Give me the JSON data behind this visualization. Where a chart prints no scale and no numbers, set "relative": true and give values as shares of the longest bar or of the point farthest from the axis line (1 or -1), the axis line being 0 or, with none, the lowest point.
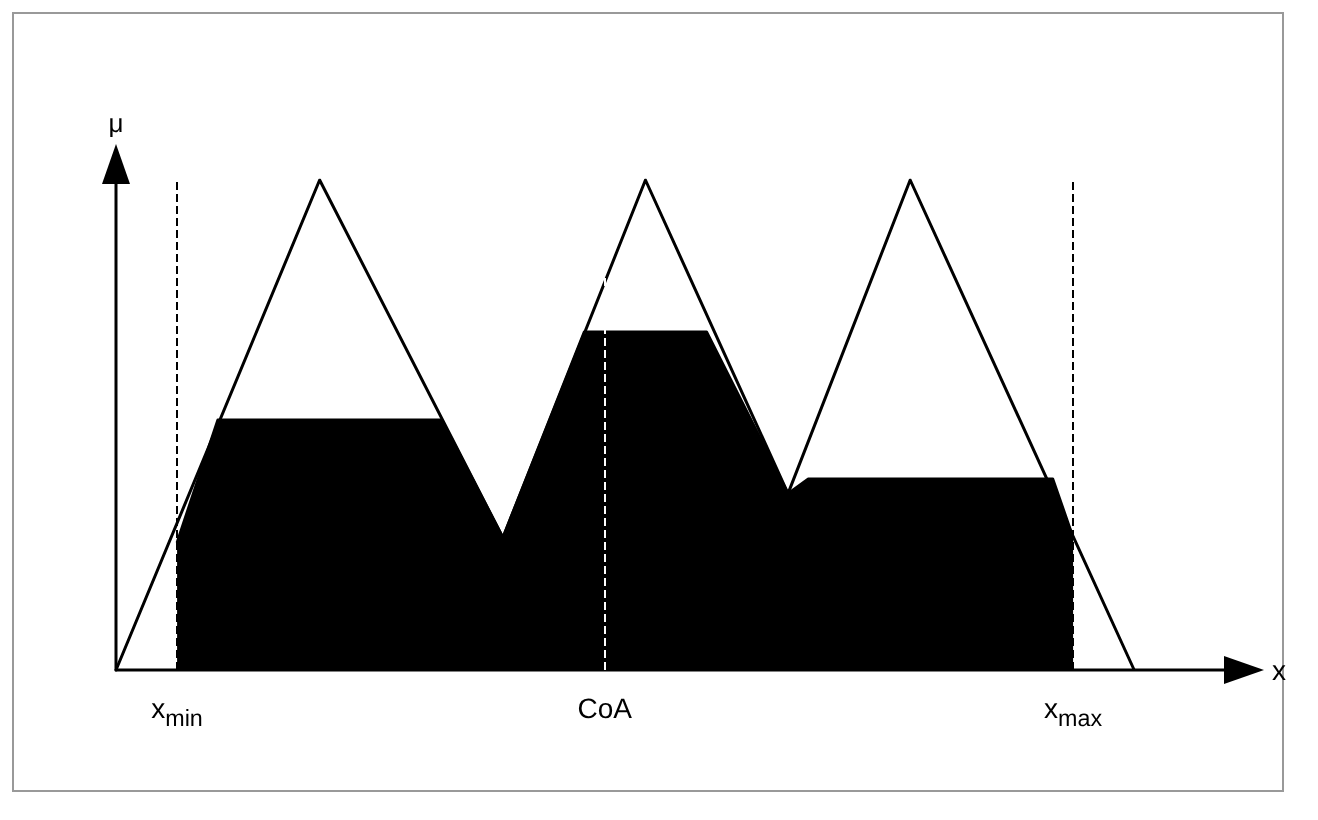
{
  "chart_data": {
    "type": "area",
    "relative": true,
    "xlabel": "x",
    "ylabel": "μ",
    "categories": [
      null,
      null,
      null,
      "x$_{min}$",
      null,
      null,
      null,
      null,
      null,
      null,
      null,
      null,
      null,
      null,
      null,
      null,
      null,
      null,
      null,
      null,
      null,
      null,
      null,
      null,
      "CoA",
      null,
      null,
      null,
      null,
      null,
      null,
      null,
      null,
      null,
      null,
      null,
      null,
      null,
      null,
      null,
      null,
      null,
      null,
      null,
      null,
      null,
      null,
      "x$_{max}$",
      null,
      null,
      null,
      null,
      null,
      null,
      null,
      null
    ],
    "series": [
      {
        "color": "#000000",
        "values": [
          null,
          null,
          null,
          0.26,
          null,
          0.51,
          null,
          null,
          null,
          null,
          null,
          null,
          null,
          null,
          null,
          null,
          0.51,
          null,
          null,
          0.27,
          null,
          null,
          null,
          0.69,
          null,
          null,
          null,
          null,
          null,
          0.69,
          null,
          null,
          null,
          0.36,
          0.39,
          null,
          null,
          null,
          null,
          null,
          null,
          null,
          null,
          null,
          null,
          null,
          0.39,
          0.27,
          null,
          null,
          null,
          null,
          null,
          null,
          null,
          null
        ]
      },
      {
        "type": "line",
        "color": "#000000",
        "values": [
          0,
          null,
          null,
          null,
          null,
          null,
          null,
          null,
          null,
          null,
          1,
          null,
          null,
          null,
          null,
          null,
          null,
          null,
          null,
          0.27,
          null,
          null,
          null,
          null,
          null,
          null,
          1,
          null,
          null,
          null,
          null,
          null,
          null,
          0.36,
          null,
          null,
          null,
          null,
          null,
          1,
          null,
          null,
          null,
          null,
          null,
          null,
          null,
          null,
          null,
          null,
          0,
          null,
          null,
          null,
          null,
          null
        ]
      }
    ],
    "ref_lines": [
      {
        "axis": "x",
        "value": "x$_{min}$",
        "color": "#000000",
        "line_style": "dashed"
      },
      {
        "axis": "x",
        "value": "CoA",
        "color": "#ffffff",
        "line_style": "dashed"
      },
      {
        "axis": "x",
        "value": "x$_{max}$",
        "color": "#000000",
        "line_style": "dashed"
      }
    ],
    "grid": false,
    "marker": "none"
  }
}
